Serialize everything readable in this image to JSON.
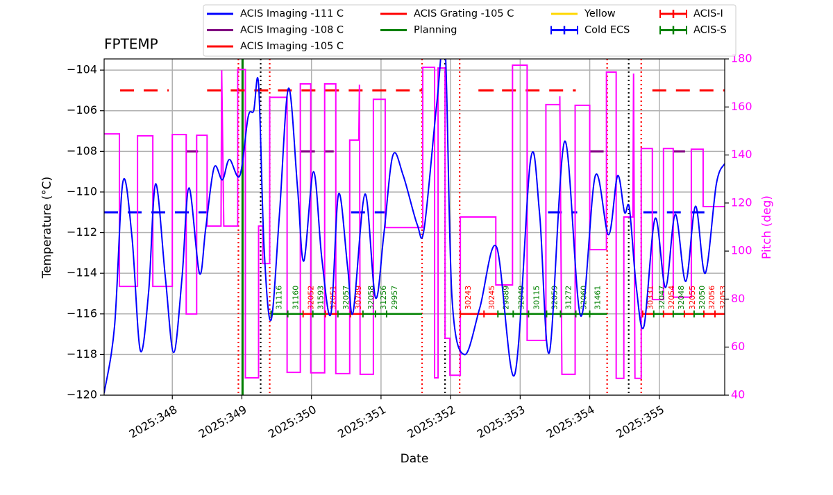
{
  "chart_data": {
    "type": "line",
    "title": "FPTEMP",
    "x_label": "Date",
    "y_label": "Temperature (°C)",
    "y2_label": "Pitch (deg)",
    "xlim": [
      347.02,
      355.94
    ],
    "ylim": [
      -120,
      -103.45
    ],
    "y2lim": [
      40,
      180
    ],
    "grid": true,
    "xticks": [
      {
        "value": 348,
        "label": "2025:348"
      },
      {
        "value": 349,
        "label": "2025:349"
      },
      {
        "value": 350,
        "label": "2025:350"
      },
      {
        "value": 351,
        "label": "2025:351"
      },
      {
        "value": 352,
        "label": "2025:352"
      },
      {
        "value": 353,
        "label": "2025:353"
      },
      {
        "value": 354,
        "label": "2025:354"
      },
      {
        "value": 355,
        "label": "2025:355"
      }
    ],
    "yticks": [
      {
        "value": -120,
        "label": "−120"
      },
      {
        "value": -118,
        "label": "−118"
      },
      {
        "value": -116,
        "label": "−116"
      },
      {
        "value": -114,
        "label": "−114"
      },
      {
        "value": -112,
        "label": "−112"
      },
      {
        "value": -110,
        "label": "−110"
      },
      {
        "value": -108,
        "label": "−108"
      },
      {
        "value": -106,
        "label": "−106"
      },
      {
        "value": -104,
        "label": "−104"
      }
    ],
    "y2ticks": [
      40,
      60,
      80,
      100,
      120,
      140,
      160,
      180
    ],
    "y2_color": "#ff00ff",
    "temperature": {
      "color": "#0000ff",
      "x": [
        347.02,
        347.17,
        347.29,
        347.42,
        347.54,
        347.66,
        347.76,
        347.9,
        348.02,
        348.14,
        348.24,
        348.39,
        348.48,
        348.6,
        348.72,
        348.82,
        348.97,
        349.09,
        349.17,
        349.24,
        349.32,
        349.42,
        349.54,
        349.67,
        349.8,
        349.89,
        350.03,
        350.15,
        350.28,
        350.39,
        350.52,
        350.6,
        350.77,
        350.92,
        351.04,
        351.17,
        351.32,
        351.52,
        351.62,
        351.8,
        351.92,
        352.02,
        352.2,
        352.42,
        352.66,
        352.92,
        353.15,
        353.28,
        353.42,
        353.64,
        353.87,
        354.08,
        354.27,
        354.4,
        354.5,
        354.57,
        354.67,
        354.78,
        354.94,
        355.09,
        355.23,
        355.38,
        355.52,
        355.66,
        355.82,
        355.94
      ],
      "values": [
        -119.9,
        -116.6,
        -109.5,
        -112.2,
        -117.8,
        -114.9,
        -109.6,
        -114.2,
        -117.9,
        -114.2,
        -109.8,
        -114.0,
        -111.8,
        -108.8,
        -109.4,
        -108.4,
        -109.2,
        -106.3,
        -106.0,
        -104.7,
        -112.8,
        -116.3,
        -111.1,
        -104.9,
        -109.8,
        -113.4,
        -109.0,
        -113.3,
        -116.0,
        -110.1,
        -113.7,
        -115.9,
        -110.1,
        -115.2,
        -112.1,
        -108.2,
        -109.2,
        -111.6,
        -111.8,
        -105.7,
        -102.8,
        -115.2,
        -118.0,
        -115.7,
        -112.7,
        -119.0,
        -108.4,
        -111.1,
        -117.9,
        -107.5,
        -116.1,
        -109.2,
        -112.1,
        -109.2,
        -111.0,
        -110.8,
        -114.7,
        -116.6,
        -111.3,
        -114.7,
        -111.1,
        -114.4,
        -110.7,
        -114.0,
        -109.6,
        -108.6
      ]
    },
    "pitch": {
      "color": "#ff00ff",
      "axis": "y2",
      "x": [
        347.02,
        347.24,
        347.24,
        347.5,
        347.5,
        347.72,
        347.72,
        348.0,
        348.0,
        348.2,
        348.2,
        348.35,
        348.35,
        348.5,
        348.5,
        348.7,
        348.71,
        348.74,
        348.94,
        348.94,
        349.05,
        349.05,
        349.24,
        349.24,
        349.3,
        349.3,
        349.4,
        349.4,
        349.65,
        349.65,
        349.84,
        349.84,
        349.99,
        349.99,
        350.19,
        350.19,
        350.35,
        350.35,
        350.55,
        350.55,
        350.68,
        350.69,
        350.7,
        350.89,
        350.89,
        351.06,
        351.06,
        351.6,
        351.6,
        351.77,
        351.77,
        351.82,
        351.82,
        351.92,
        351.92,
        351.99,
        351.99,
        352.14,
        352.14,
        352.65,
        352.65,
        352.89,
        352.89,
        353.1,
        353.1,
        353.37,
        353.37,
        353.57,
        353.57,
        353.6,
        353.79,
        353.79,
        354.0,
        354.0,
        354.24,
        354.24,
        354.38,
        354.38,
        354.49,
        354.49,
        354.62,
        354.63,
        354.65,
        354.74,
        354.74,
        354.9,
        354.9,
        355.06,
        355.06,
        355.2,
        355.2,
        355.46,
        355.46,
        355.63,
        355.63,
        355.78,
        355.78,
        355.94
      ],
      "values": [
        148.8,
        148.8,
        85.3,
        85.3,
        148.0,
        148.0,
        85.3,
        85.3,
        148.5,
        148.5,
        73.8,
        73.8,
        148.2,
        148.2,
        110.4,
        110.4,
        175.3,
        110.4,
        110.4,
        175.6,
        175.6,
        47.2,
        47.2,
        110.4,
        110.4,
        94.8,
        94.8,
        164.0,
        164.0,
        49.5,
        49.5,
        169.6,
        169.6,
        49.3,
        49.3,
        169.6,
        169.6,
        49.0,
        49.0,
        146.2,
        146.2,
        169.3,
        48.7,
        48.7,
        163.2,
        163.2,
        109.8,
        109.8,
        176.5,
        176.5,
        47.2,
        47.2,
        176.2,
        176.2,
        63.7,
        63.7,
        48.3,
        48.3,
        114.2,
        114.2,
        85.9,
        85.9,
        177.4,
        177.4,
        62.8,
        62.8,
        161.0,
        161.0,
        164.5,
        48.7,
        48.7,
        160.7,
        160.7,
        100.6,
        100.6,
        174.5,
        174.5,
        47.0,
        47.0,
        114.2,
        114.2,
        173.9,
        47.0,
        47.0,
        142.7,
        142.7,
        79.8,
        79.8,
        142.7,
        142.7,
        80.8,
        80.8,
        142.4,
        142.4,
        118.5,
        118.5,
        118.5,
        118.5
      ]
    },
    "vlines": [
      {
        "x": 348.95,
        "color": "#ff0000",
        "style": "dotted"
      },
      {
        "x": 349.01,
        "color": "#008000",
        "style": "solid"
      },
      {
        "x": 349.27,
        "color": "#000000",
        "style": "dotted"
      },
      {
        "x": 349.4,
        "color": "#ff0000",
        "style": "dotted"
      },
      {
        "x": 351.59,
        "color": "#ff0000",
        "style": "dotted"
      },
      {
        "x": 351.92,
        "color": "#000000",
        "style": "dotted"
      },
      {
        "x": 352.13,
        "color": "#ff0000",
        "style": "dotted"
      },
      {
        "x": 354.25,
        "color": "#ff0000",
        "style": "dotted"
      },
      {
        "x": 354.56,
        "color": "#000000",
        "style": "dotted"
      },
      {
        "x": 354.74,
        "color": "#ff0000",
        "style": "dotted"
      }
    ],
    "obs_y": -116,
    "series": [
      {
        "name": "ACIS Imaging -111 C",
        "color": "#0000ff",
        "dashed": true,
        "x": [
          347.02,
          348.5,
          348.53,
          350.57,
          351.07,
          351.1,
          353.4,
          353.82,
          353.85,
          354.77,
          355.77
        ],
        "values": [
          -111,
          -111,
          null,
          -111,
          -111,
          null,
          -111,
          -111,
          null,
          -111,
          -111
        ]
      },
      {
        "name": "ACIS Imaging -108 C",
        "color": "#800080",
        "dashed": true,
        "x": [
          348.2,
          348.37,
          348.4,
          349.85,
          350.32,
          350.35,
          354.0,
          354.24,
          354.27,
          355.2,
          355.37
        ],
        "values": [
          -108,
          -108,
          null,
          -108,
          -108,
          null,
          -108,
          -108,
          null,
          -108,
          -108
        ]
      },
      {
        "name": "ACIS Imaging -105 C",
        "color": "#ff0000",
        "dashed": true,
        "x": [
          347.25,
          347.95,
          347.98,
          348.5,
          351.6,
          351.63,
          352.4,
          353.8,
          353.83,
          354.9,
          355.94
        ],
        "values": [
          -105,
          -105,
          null,
          -105,
          -105,
          null,
          -105,
          -105,
          null,
          -105,
          -105
        ]
      },
      {
        "name": "ACIS Grating -105 C",
        "color": "#ff0000",
        "dashed": true,
        "x": [
          352.42,
          352.67
        ],
        "values": [
          -105,
          -105
        ]
      },
      {
        "name": "Planning",
        "color": "#008000"
      },
      {
        "name": "Yellow",
        "color": "#ffd700"
      },
      {
        "name": "Cold ECS",
        "color": "#0000ff",
        "marker": "+"
      },
      {
        "name": "ACIS-I",
        "color": "#ff0000",
        "marker": "+",
        "obs": [
          {
            "label": "32052",
            "start": 349.88,
            "stop": 350.02
          },
          {
            "label": "32051",
            "start": 350.2,
            "stop": 350.38
          },
          {
            "label": "30789",
            "start": 350.56,
            "stop": 350.74
          },
          {
            "label": "30243",
            "start": 352.14,
            "stop": 352.48
          },
          {
            "label": "30245",
            "start": 352.48,
            "stop": 352.68
          },
          {
            "label": "30331",
            "start": 354.76,
            "stop": 354.92
          },
          {
            "label": "32054",
            "start": 355.06,
            "stop": 355.2
          },
          {
            "label": "32055",
            "start": 355.36,
            "stop": 355.5
          },
          {
            "label": "32056",
            "start": 355.64,
            "stop": 355.8
          },
          {
            "label": "32053",
            "start": 355.8,
            "stop": 355.94
          }
        ]
      },
      {
        "name": "ACIS-S",
        "color": "#008000",
        "marker": "+",
        "obs": [
          {
            "label": "31116",
            "start": 349.42,
            "stop": 349.66
          },
          {
            "label": "31160",
            "start": 349.66,
            "stop": 349.88
          },
          {
            "label": "31593",
            "start": 350.02,
            "stop": 350.2
          },
          {
            "label": "32057",
            "start": 350.38,
            "stop": 350.56
          },
          {
            "label": "32058",
            "start": 350.74,
            "stop": 350.92
          },
          {
            "label": "31256",
            "start": 350.92,
            "stop": 351.08
          },
          {
            "label": "29957",
            "start": 351.08,
            "stop": 351.59
          },
          {
            "label": "29889",
            "start": 352.68,
            "stop": 352.9
          },
          {
            "label": "32049",
            "start": 352.9,
            "stop": 353.12
          },
          {
            "label": "30115",
            "start": 353.12,
            "stop": 353.38
          },
          {
            "label": "32059",
            "start": 353.38,
            "stop": 353.58
          },
          {
            "label": "31272",
            "start": 353.58,
            "stop": 353.8
          },
          {
            "label": "32060",
            "start": 353.8,
            "stop": 354.0
          },
          {
            "label": "31461",
            "start": 354.0,
            "stop": 354.25
          },
          {
            "label": "32047",
            "start": 354.92,
            "stop": 355.06
          },
          {
            "label": "32048",
            "start": 355.2,
            "stop": 355.36
          },
          {
            "label": "32050",
            "start": 355.5,
            "stop": 355.64
          }
        ]
      }
    ]
  }
}
